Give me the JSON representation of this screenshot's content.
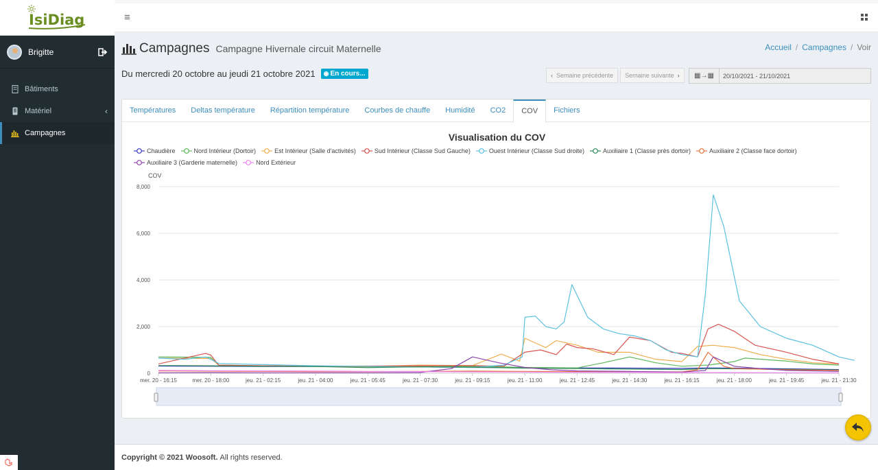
{
  "app": {
    "logo_text": "IsiDiag"
  },
  "user": {
    "name": "Brigitte"
  },
  "sidebar": {
    "items": [
      {
        "label": "Bâtiments",
        "icon": "building-icon"
      },
      {
        "label": "Matériel",
        "icon": "device-icon"
      },
      {
        "label": "Campagnes",
        "icon": "bar-chart-icon",
        "active": true
      }
    ]
  },
  "header": {
    "title": "Campagnes",
    "subtitle": "Campagne Hivernale circuit Maternelle",
    "breadcrumb": [
      "Accueil",
      "Campagnes",
      "Voir"
    ]
  },
  "period": {
    "text": "Du mercredi 20 octobre au jeudi 21 octobre 2021",
    "badge": "En cours..."
  },
  "week_nav": {
    "prev": "Semaine précédente",
    "next": "Semaine suivante"
  },
  "date_picker": {
    "value": "20/10/2021 - 21/10/2021"
  },
  "tabs": [
    "Températures",
    "Deltas température",
    "Répartition température",
    "Courbes de chauffe",
    "Humidité",
    "CO2",
    "COV",
    "Fichiers"
  ],
  "active_tab": "COV",
  "footer": {
    "copyright": "Copyright © 2021 Woosoft.",
    "rights": "All rights reserved."
  },
  "chart_data": {
    "type": "line",
    "title": "Visualisation du COV",
    "ylabel": "COV",
    "xlabel": "",
    "ylim": [
      0,
      8000
    ],
    "yticks": [
      "0",
      "2,000",
      "4,000",
      "6,000",
      "8,000"
    ],
    "grid": true,
    "legend_position": "top",
    "x_ticks": [
      "mer. 20 - 16:15",
      "mer. 20 - 18:00",
      "jeu. 21 - 02:15",
      "jeu. 21 - 04:00",
      "jeu. 21 - 05:45",
      "jeu. 21 - 07:30",
      "jeu. 21 - 09:15",
      "jeu. 21 - 11:00",
      "jeu. 21 - 12:45",
      "jeu. 21 - 14:30",
      "jeu. 21 - 16:15",
      "jeu. 21 - 18:00",
      "jeu. 21 - 19:45",
      "jeu. 21 - 21:30"
    ],
    "series": [
      {
        "name": "Chaudière",
        "color": "#3b3bbf",
        "points": [
          [
            0,
            310
          ],
          [
            1,
            300
          ],
          [
            2,
            290
          ],
          [
            3,
            290
          ],
          [
            4,
            280
          ],
          [
            5,
            270
          ],
          [
            6,
            250
          ],
          [
            7,
            240
          ],
          [
            8,
            230
          ],
          [
            9,
            220
          ],
          [
            10,
            210
          ],
          [
            10.5,
            230
          ],
          [
            11,
            220
          ],
          [
            12,
            190
          ],
          [
            13,
            160
          ]
        ]
      },
      {
        "name": "Nord Intérieur (Dortoir)",
        "color": "#5cb85c",
        "points": [
          [
            0,
            700
          ],
          [
            0.5,
            690
          ],
          [
            1,
            680
          ],
          [
            1.15,
            350
          ],
          [
            2,
            310
          ],
          [
            3,
            290
          ],
          [
            4,
            280
          ],
          [
            5,
            280
          ],
          [
            6,
            300
          ],
          [
            7,
            250
          ],
          [
            8,
            230
          ],
          [
            8.5,
            450
          ],
          [
            9,
            700
          ],
          [
            9.5,
            450
          ],
          [
            10,
            300
          ],
          [
            10.5,
            350
          ],
          [
            11,
            500
          ],
          [
            11.2,
            650
          ],
          [
            12,
            520
          ],
          [
            12.5,
            400
          ],
          [
            13,
            350
          ]
        ]
      },
      {
        "name": "Est Intérieur (Salle d'activités)",
        "color": "#f0ad4e",
        "points": [
          [
            0,
            650
          ],
          [
            0.5,
            640
          ],
          [
            1,
            630
          ],
          [
            1.15,
            350
          ],
          [
            2,
            320
          ],
          [
            3,
            300
          ],
          [
            4,
            290
          ],
          [
            5,
            350
          ],
          [
            6,
            330
          ],
          [
            6.55,
            820
          ],
          [
            6.9,
            520
          ],
          [
            7,
            1500
          ],
          [
            7.4,
            1100
          ],
          [
            7.6,
            1400
          ],
          [
            8,
            1200
          ],
          [
            8.4,
            900
          ],
          [
            9,
            900
          ],
          [
            9.5,
            600
          ],
          [
            10,
            500
          ],
          [
            10.3,
            1150
          ],
          [
            10.6,
            1200
          ],
          [
            11,
            1100
          ],
          [
            11.5,
            800
          ],
          [
            12,
            600
          ],
          [
            12.5,
            450
          ],
          [
            13,
            400
          ]
        ]
      },
      {
        "name": "Sud Intérieur (Classe Sud Gauche)",
        "color": "#d9534f",
        "points": [
          [
            0,
            400
          ],
          [
            0.5,
            650
          ],
          [
            0.9,
            850
          ],
          [
            1,
            780
          ],
          [
            1.15,
            350
          ],
          [
            2,
            320
          ],
          [
            3,
            300
          ],
          [
            4,
            310
          ],
          [
            5,
            320
          ],
          [
            6,
            330
          ],
          [
            6.6,
            300
          ],
          [
            7,
            900
          ],
          [
            7.3,
            1000
          ],
          [
            7.6,
            800
          ],
          [
            7.8,
            1250
          ],
          [
            8,
            1100
          ],
          [
            8.3,
            1050
          ],
          [
            8.7,
            800
          ],
          [
            9,
            1550
          ],
          [
            9.4,
            1400
          ],
          [
            9.8,
            900
          ],
          [
            10,
            850
          ],
          [
            10.3,
            700
          ],
          [
            10.5,
            1900
          ],
          [
            10.7,
            2100
          ],
          [
            11,
            1800
          ],
          [
            11.4,
            1200
          ],
          [
            12,
            900
          ],
          [
            12.5,
            600
          ],
          [
            13,
            400
          ]
        ]
      },
      {
        "name": "Ouest Intérieur (Classe Sud droite)",
        "color": "#5bc0de",
        "points": [
          [
            0,
            650
          ],
          [
            0.5,
            600
          ],
          [
            0.9,
            700
          ],
          [
            1,
            600
          ],
          [
            1.15,
            420
          ],
          [
            2,
            370
          ],
          [
            3,
            320
          ],
          [
            4,
            300
          ],
          [
            5,
            270
          ],
          [
            6,
            250
          ],
          [
            6.6,
            350
          ],
          [
            6.95,
            700
          ],
          [
            7,
            2400
          ],
          [
            7.2,
            2450
          ],
          [
            7.4,
            2000
          ],
          [
            7.6,
            1900
          ],
          [
            7.75,
            2200
          ],
          [
            7.9,
            3800
          ],
          [
            8.2,
            2400
          ],
          [
            8.5,
            1900
          ],
          [
            8.8,
            1700
          ],
          [
            9.1,
            1600
          ],
          [
            9.4,
            1400
          ],
          [
            9.7,
            1000
          ],
          [
            10,
            800
          ],
          [
            10.3,
            700
          ],
          [
            10.45,
            3400
          ],
          [
            10.6,
            7650
          ],
          [
            10.8,
            6300
          ],
          [
            11.1,
            3100
          ],
          [
            11.5,
            2000
          ],
          [
            12,
            1500
          ],
          [
            12.5,
            1200
          ],
          [
            13,
            700
          ],
          [
            13.3,
            550
          ]
        ]
      },
      {
        "name": "Auxiliaire 1 (Classe près dortoir)",
        "color": "#2e8b57",
        "points": [
          [
            0,
            330
          ],
          [
            1,
            320
          ],
          [
            2,
            300
          ],
          [
            3,
            290
          ],
          [
            4,
            240
          ],
          [
            5,
            280
          ],
          [
            6,
            260
          ],
          [
            7,
            220
          ],
          [
            8,
            200
          ],
          [
            9,
            180
          ],
          [
            10,
            160
          ],
          [
            10.5,
            200
          ],
          [
            11,
            190
          ],
          [
            12,
            170
          ],
          [
            13,
            140
          ]
        ]
      },
      {
        "name": "Auxiliaire 2 (Classe face dortoir)",
        "color": "#e8743b",
        "points": [
          [
            0,
            100
          ],
          [
            1,
            90
          ],
          [
            2,
            80
          ],
          [
            3,
            70
          ],
          [
            4,
            70
          ],
          [
            5,
            80
          ],
          [
            6,
            90
          ],
          [
            7,
            80
          ],
          [
            8,
            70
          ],
          [
            9,
            60
          ],
          [
            10,
            60
          ],
          [
            10.3,
            150
          ],
          [
            10.5,
            900
          ],
          [
            10.8,
            300
          ],
          [
            11,
            200
          ],
          [
            12,
            150
          ],
          [
            13,
            120
          ]
        ]
      },
      {
        "name": "Auxiliaire 3 (Garderie maternelle)",
        "color": "#8e44ad",
        "points": [
          [
            0,
            20
          ],
          [
            1,
            30
          ],
          [
            2,
            20
          ],
          [
            3,
            20
          ],
          [
            4,
            20
          ],
          [
            5,
            30
          ],
          [
            5.6,
            200
          ],
          [
            6,
            700
          ],
          [
            6.5,
            450
          ],
          [
            7,
            250
          ],
          [
            7.5,
            150
          ],
          [
            8,
            100
          ],
          [
            9,
            80
          ],
          [
            10,
            50
          ],
          [
            10.45,
            120
          ],
          [
            10.6,
            700
          ],
          [
            11,
            300
          ],
          [
            11.5,
            200
          ],
          [
            12,
            120
          ],
          [
            13,
            80
          ]
        ]
      },
      {
        "name": "Nord Extérieur",
        "color": "#ee82ee",
        "points": [
          [
            0,
            120
          ],
          [
            1,
            110
          ],
          [
            2,
            100
          ],
          [
            3,
            90
          ],
          [
            4,
            80
          ],
          [
            5,
            70
          ],
          [
            6,
            60
          ],
          [
            7,
            50
          ],
          [
            8,
            40
          ],
          [
            9,
            40
          ],
          [
            10,
            30
          ],
          [
            11,
            30
          ],
          [
            12,
            20
          ],
          [
            13,
            20
          ]
        ]
      }
    ]
  }
}
